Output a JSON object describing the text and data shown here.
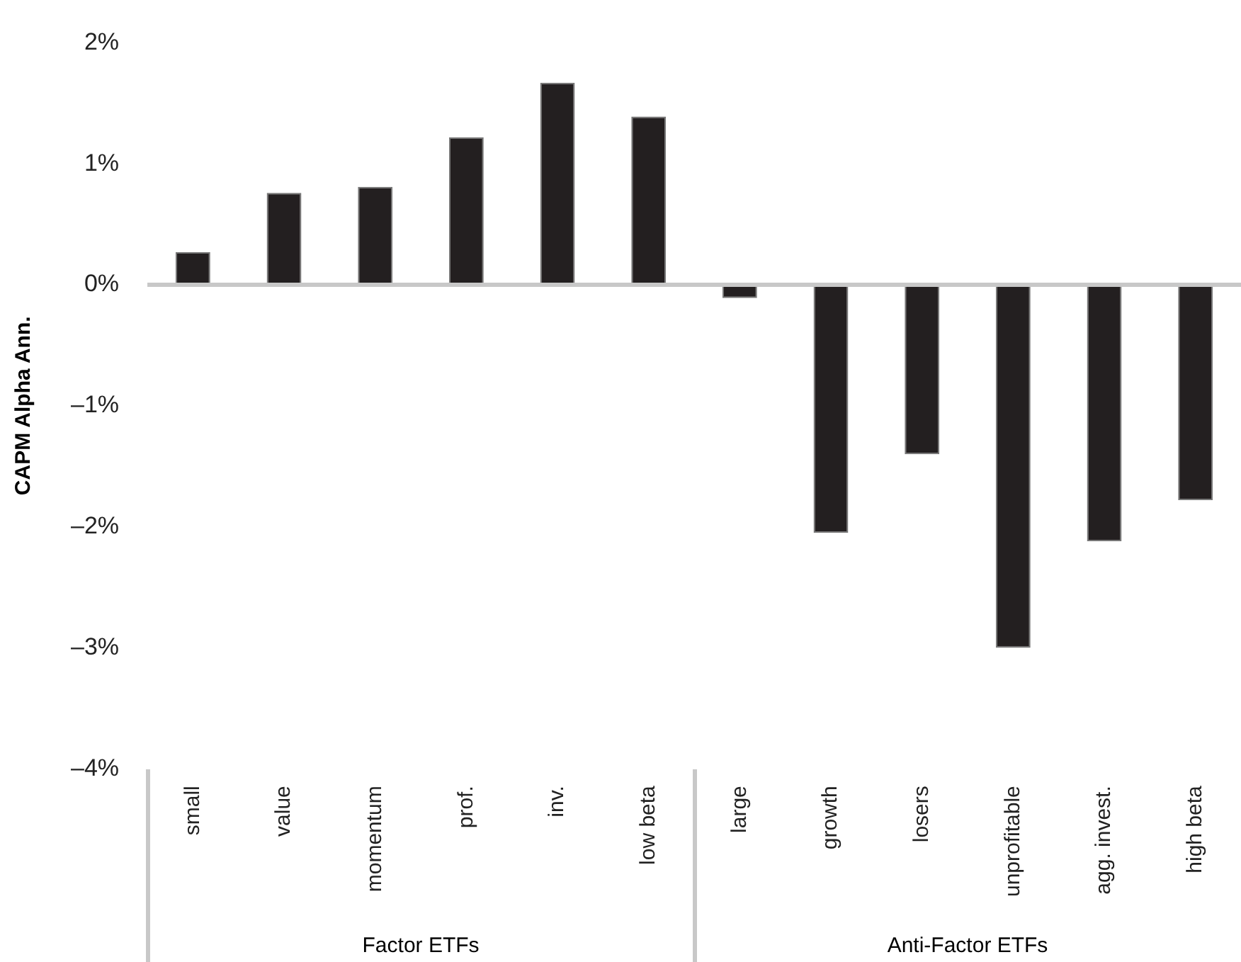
{
  "chart_data": {
    "type": "bar",
    "ylabel": "CAPM Alpha Ann.",
    "categories": [
      "small",
      "value",
      "momentum",
      "prof.",
      "inv.",
      "low beta",
      "large",
      "growth",
      "losers",
      "unprofitable",
      "agg. invest.",
      "high beta"
    ],
    "values": [
      0.27,
      0.76,
      0.81,
      1.22,
      1.67,
      1.39,
      -0.11,
      -2.05,
      -1.4,
      -3.0,
      -2.12,
      -1.78
    ],
    "color": "#231f20",
    "ylim": [
      -4,
      2
    ],
    "yticks": [
      {
        "value": -4,
        "label": "–4%"
      },
      {
        "value": -3,
        "label": "–3%"
      },
      {
        "value": -2,
        "label": "–2%"
      },
      {
        "value": -1,
        "label": "–1%"
      },
      {
        "value": 0,
        "label": "0%"
      },
      {
        "value": 1,
        "label": "1%"
      },
      {
        "value": 2,
        "label": "2%"
      }
    ],
    "grid": false,
    "ref_lines": [
      {
        "axis": "y",
        "value": 0,
        "color": "#c8c8c8"
      }
    ],
    "legend": false,
    "annotations": [
      "Factor ETFs",
      "Anti-Factor ETFs"
    ]
  }
}
